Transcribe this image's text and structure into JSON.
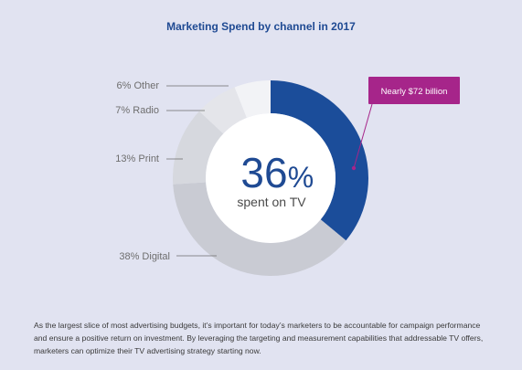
{
  "chart_data": {
    "type": "pie",
    "title": "Marketing Spend by channel in 2017",
    "slices": [
      {
        "label": "TV",
        "value": 36,
        "color": "#1b4d9a"
      },
      {
        "label": "Digital",
        "value": 38,
        "color": "#c9cbd3"
      },
      {
        "label": "Print",
        "value": 13,
        "color": "#d6d8de"
      },
      {
        "label": "Radio",
        "value": 7,
        "color": "#e4e5ea"
      },
      {
        "label": "Other",
        "value": 6,
        "color": "#f2f3f6"
      }
    ],
    "slice_labels": [
      "38% Digital",
      "13% Print",
      "7% Radio",
      "6% Other"
    ],
    "center_big": "36",
    "center_pct": "%",
    "center_sub": "spent on TV",
    "callout": {
      "text": "Nearly $72 billion",
      "color": "#a6258a"
    }
  },
  "body_text": "As the largest slice of most advertising budgets, it’s important for today’s marketers to be accountable for campaign performance and ensure a positive return on investment. By leveraging the targeting and measurement capabilities that addressable TV offers, marketers can optimize their TV advertising strategy starting now."
}
